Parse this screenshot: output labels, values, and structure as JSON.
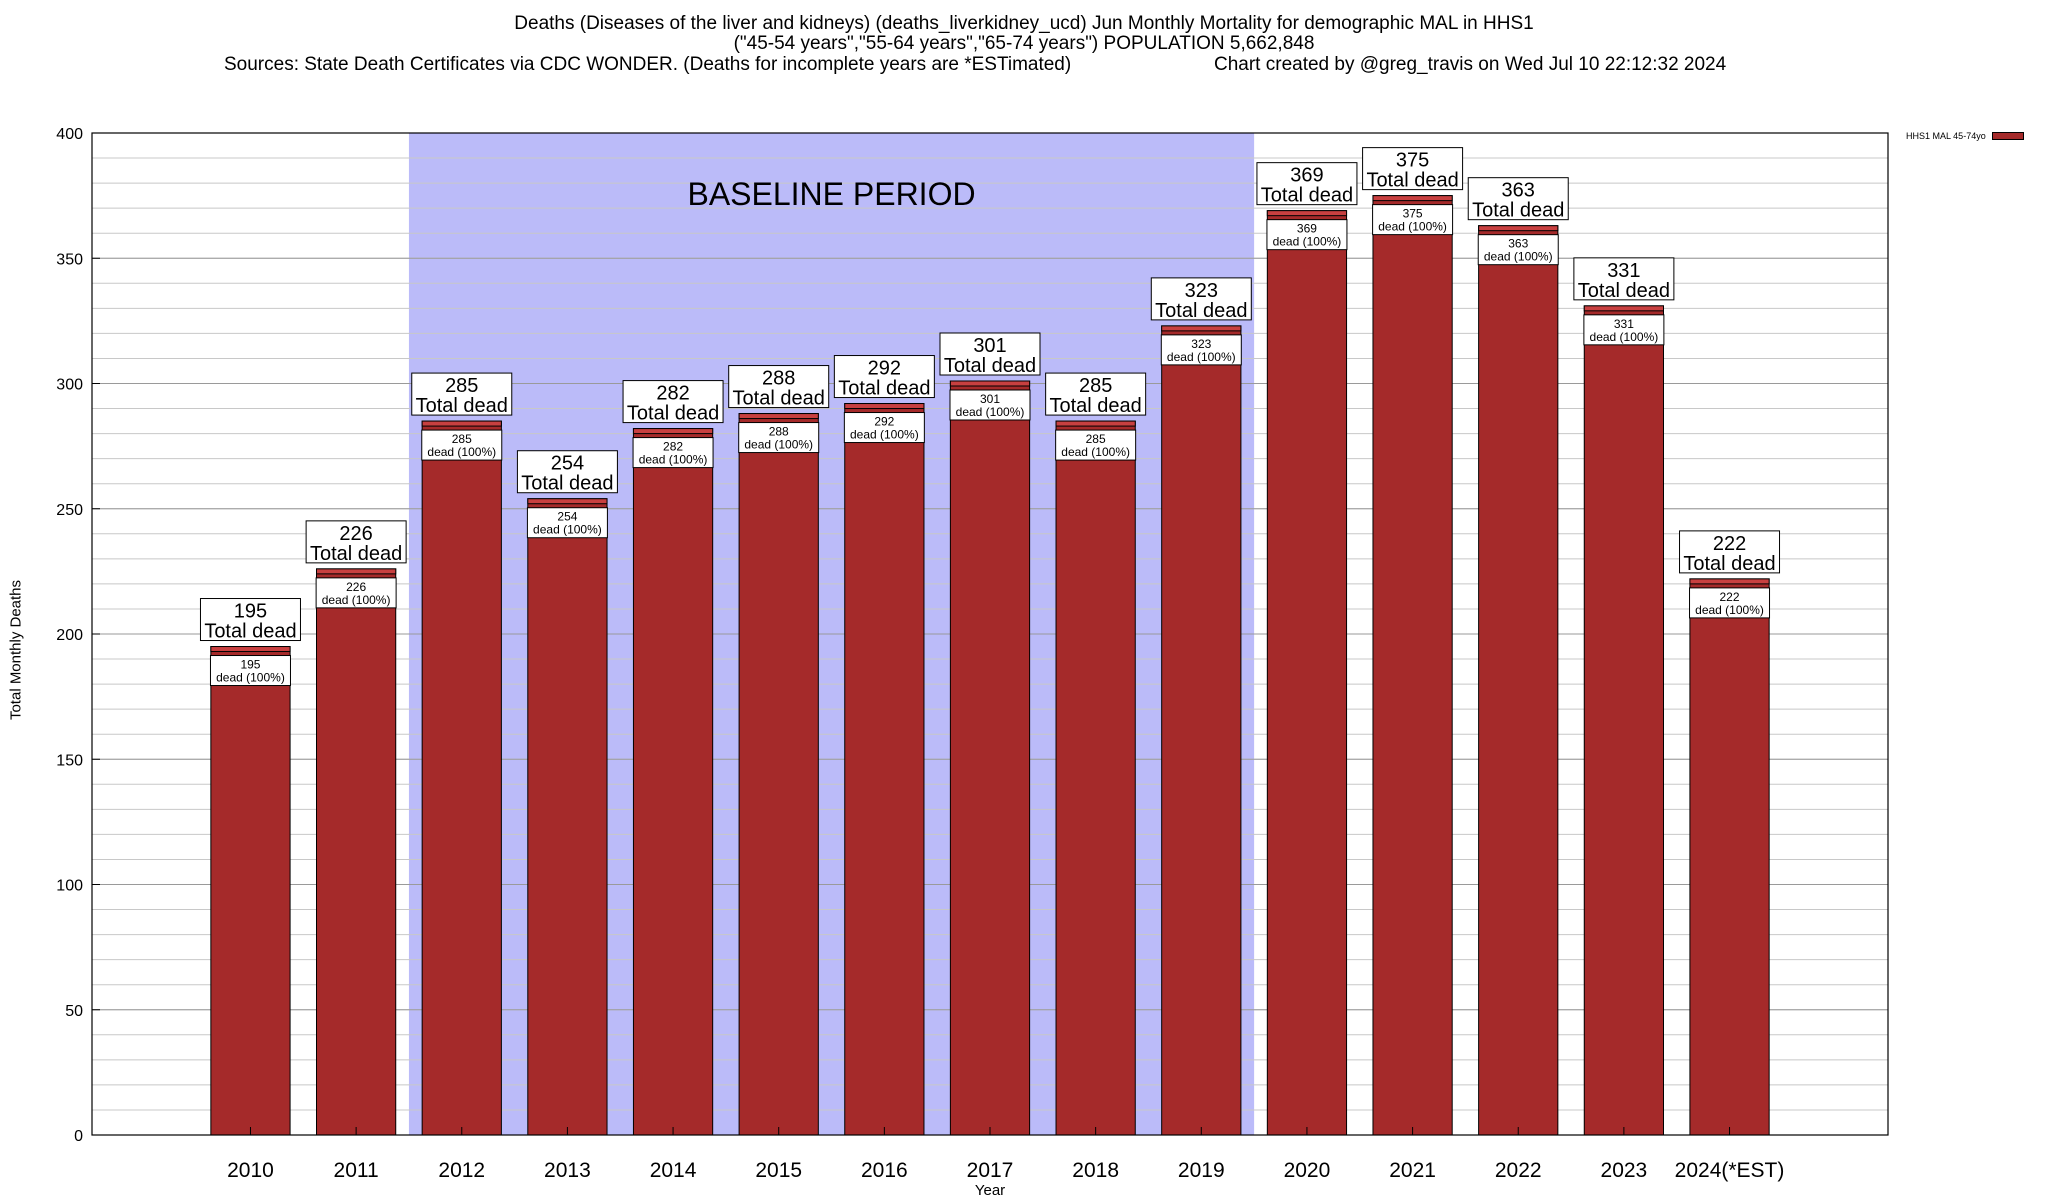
{
  "title_lines": [
    "Deaths (Diseases of the liver and kidneys) (deaths_liverkidney_ucd) Jun Monthly Mortality for demographic MAL in HHS1",
    "(\"45-54 years\",\"55-64 years\",\"65-74 years\") POPULATION 5,662,848"
  ],
  "sources": "Sources: State Death Certificates via CDC WONDER. (Deaths for incomplete years are *ESTimated)",
  "credit": "Chart created by @greg_travis on Wed Jul 10 22:12:32 2024",
  "chart_data": {
    "type": "bar",
    "categories": [
      "2010",
      "2011",
      "2012",
      "2013",
      "2014",
      "2015",
      "2016",
      "2017",
      "2018",
      "2019",
      "2020",
      "2021",
      "2022",
      "2023",
      "2024(*EST)"
    ],
    "series": [
      {
        "name": "HHS1 MAL 45-74yo",
        "values": [
          195,
          226,
          285,
          254,
          282,
          288,
          292,
          301,
          285,
          323,
          369,
          375,
          363,
          331,
          222
        ]
      }
    ],
    "xlabel": "Year",
    "ylabel": "Total Monthly Deaths",
    "ylim": [
      0,
      400
    ],
    "yticks": [
      0,
      50,
      100,
      150,
      200,
      250,
      300,
      350,
      400
    ],
    "minor_grid_step": 10,
    "grid": true,
    "legend_position": "top-right",
    "bar_label_total": "Total dead",
    "bar_label_inner": "dead (100%)",
    "baseline": {
      "label": "BASELINE PERIOD",
      "start": "2012",
      "end": "2019",
      "color": "#bbbbf9"
    },
    "bar_color": "#a52a2a",
    "bar_top_color": "#c84040"
  }
}
